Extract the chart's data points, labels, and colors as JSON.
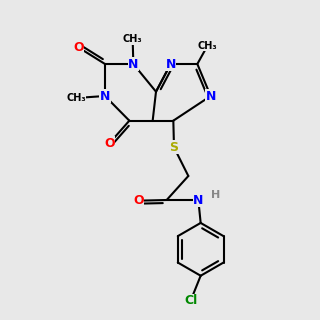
{
  "bg_color": "#e8e8e8",
  "bond_color": "#000000",
  "bond_width": 1.5,
  "atom_colors": {
    "N": "#0000ff",
    "O": "#ff0000",
    "S": "#aaaa00",
    "Cl": "#008800",
    "H": "#888888",
    "C": "#000000"
  }
}
